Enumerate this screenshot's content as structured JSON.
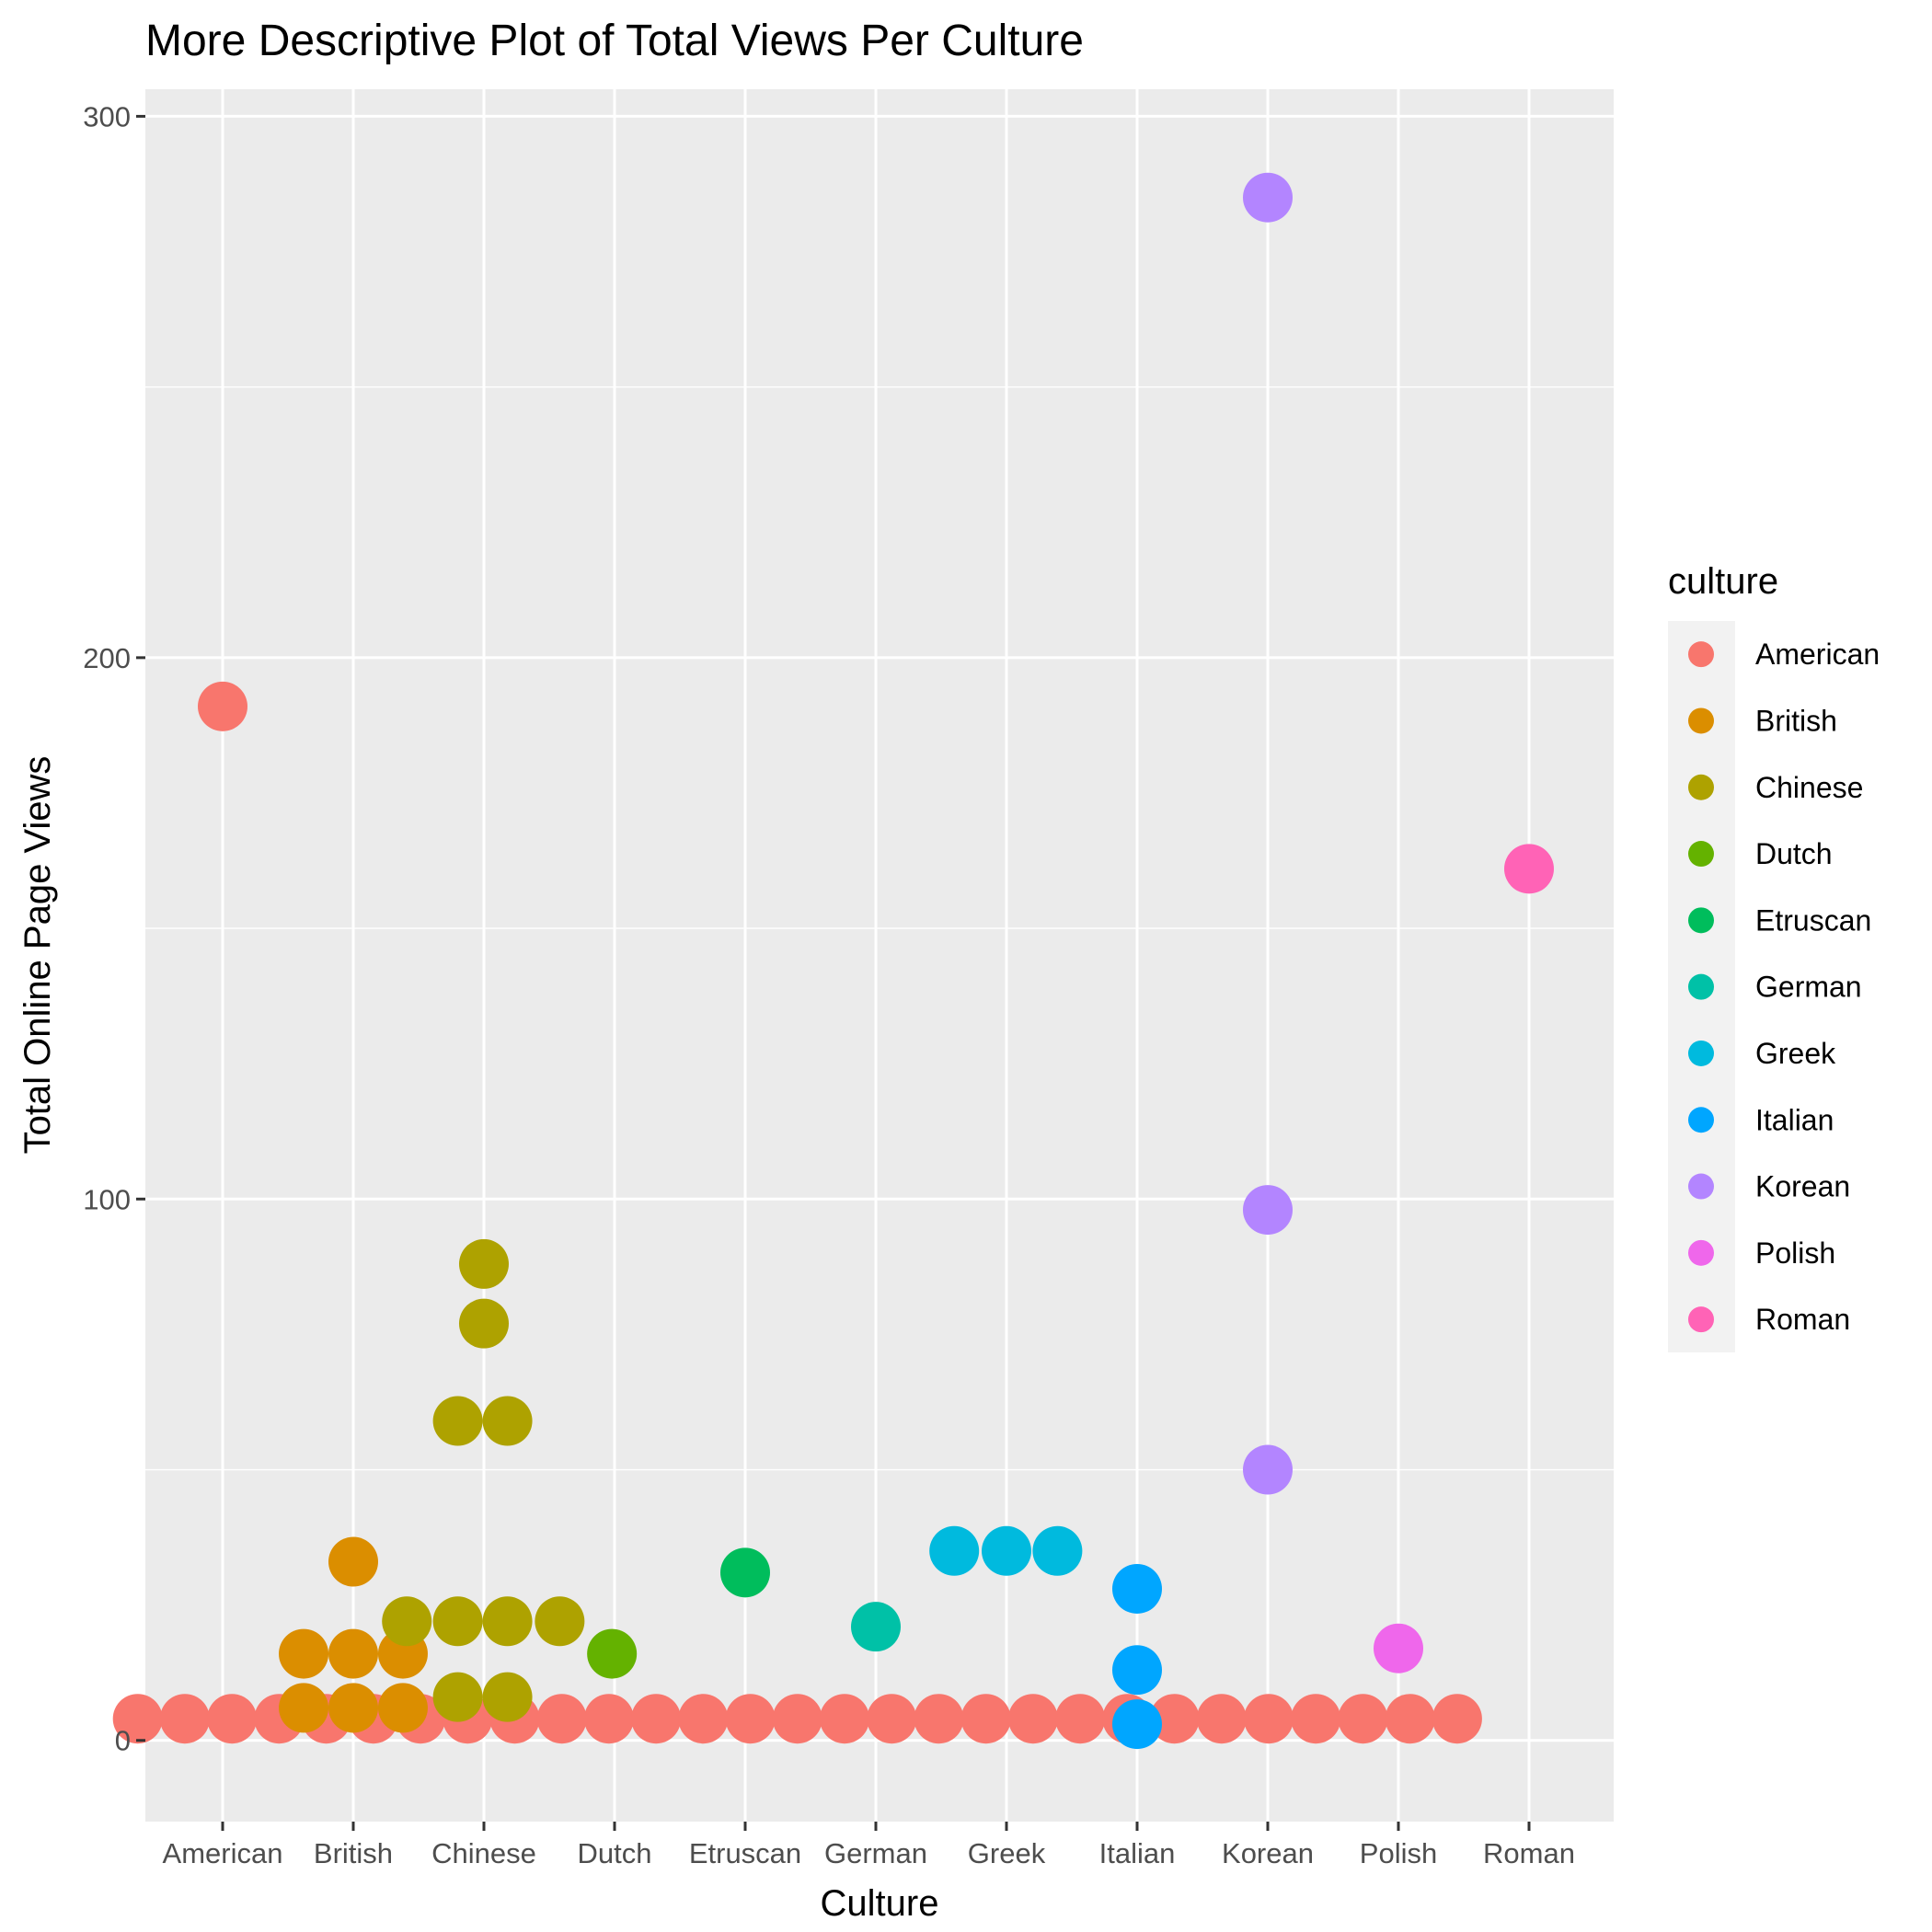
{
  "chart_data": {
    "type": "scatter",
    "title": "More Descriptive Plot of Total Views Per Culture",
    "xlabel": "Culture",
    "ylabel": "Total Online Page Views",
    "categories": [
      "American",
      "British",
      "Chinese",
      "Dutch",
      "Etruscan",
      "German",
      "Greek",
      "Italian",
      "Korean",
      "Polish",
      "Roman"
    ],
    "ylim": [
      -15,
      305
    ],
    "yticks": [
      0,
      100,
      200,
      300
    ],
    "grid": true,
    "legend": {
      "title": "culture",
      "position": "right",
      "entries": [
        "American",
        "British",
        "Chinese",
        "Dutch",
        "Etruscan",
        "German",
        "Greek",
        "Italian",
        "Korean",
        "Polish",
        "Roman"
      ]
    },
    "colors": {
      "American": "#F8766D",
      "British": "#DB8E00",
      "Chinese": "#AEA200",
      "Dutch": "#64B200",
      "Etruscan": "#00BD5C",
      "German": "#00C1A7",
      "Greek": "#00BADE",
      "Italian": "#00A6FF",
      "Korean": "#B385FF",
      "Polish": "#EF67EB",
      "Roman": "#FF63B6"
    },
    "american_baseline": {
      "value": 4,
      "x_start": 0.35,
      "x_end": 10.45,
      "count": 29
    },
    "points": [
      {
        "culture": "American",
        "x": 1.0,
        "y": 191
      },
      {
        "culture": "British",
        "x": 1.62,
        "y": 6
      },
      {
        "culture": "British",
        "x": 2.0,
        "y": 6
      },
      {
        "culture": "British",
        "x": 2.38,
        "y": 6
      },
      {
        "culture": "British",
        "x": 1.62,
        "y": 16
      },
      {
        "culture": "British",
        "x": 2.0,
        "y": 16
      },
      {
        "culture": "British",
        "x": 2.38,
        "y": 16
      },
      {
        "culture": "British",
        "x": 2.0,
        "y": 33
      },
      {
        "culture": "Chinese",
        "x": 2.8,
        "y": 8
      },
      {
        "culture": "Chinese",
        "x": 3.18,
        "y": 8
      },
      {
        "culture": "Chinese",
        "x": 2.41,
        "y": 22
      },
      {
        "culture": "Chinese",
        "x": 2.8,
        "y": 22
      },
      {
        "culture": "Chinese",
        "x": 3.18,
        "y": 22
      },
      {
        "culture": "Chinese",
        "x": 3.58,
        "y": 22
      },
      {
        "culture": "Chinese",
        "x": 2.8,
        "y": 59
      },
      {
        "culture": "Chinese",
        "x": 3.18,
        "y": 59
      },
      {
        "culture": "Chinese",
        "x": 3.0,
        "y": 77
      },
      {
        "culture": "Chinese",
        "x": 3.0,
        "y": 88
      },
      {
        "culture": "Dutch",
        "x": 3.98,
        "y": 16
      },
      {
        "culture": "Etruscan",
        "x": 5.0,
        "y": 31
      },
      {
        "culture": "German",
        "x": 6.0,
        "y": 21
      },
      {
        "culture": "Greek",
        "x": 6.6,
        "y": 35
      },
      {
        "culture": "Greek",
        "x": 7.0,
        "y": 35
      },
      {
        "culture": "Greek",
        "x": 7.39,
        "y": 35
      },
      {
        "culture": "Italian",
        "x": 8.0,
        "y": 3
      },
      {
        "culture": "Italian",
        "x": 8.0,
        "y": 13
      },
      {
        "culture": "Italian",
        "x": 8.0,
        "y": 28
      },
      {
        "culture": "Korean",
        "x": 9.0,
        "y": 50
      },
      {
        "culture": "Korean",
        "x": 9.0,
        "y": 98
      },
      {
        "culture": "Korean",
        "x": 9.0,
        "y": 285
      },
      {
        "culture": "Polish",
        "x": 10.0,
        "y": 17
      },
      {
        "culture": "Roman",
        "x": 11.0,
        "y": 161
      }
    ]
  }
}
